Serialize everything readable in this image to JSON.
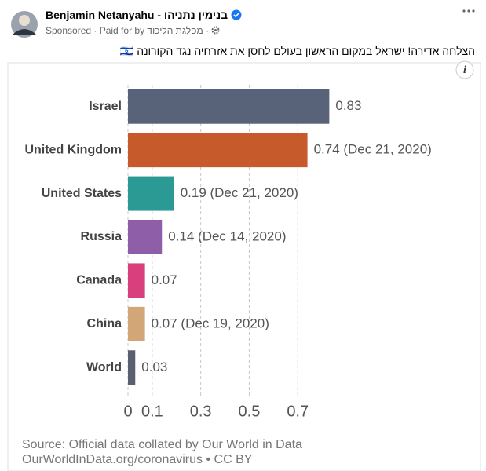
{
  "post": {
    "author": "Benjamin Netanyahu - בנימין נתניהו",
    "sponsored": "Sponsored · Paid for by",
    "payer": "מפלגת הליכוד",
    "separator": "·",
    "message": "הצלחה אדירה! ישראל במקום הראשון בעולם לחסן את אזרחיה נגד הקורונה 🇮🇱",
    "info_icon": "i"
  },
  "chart_data": {
    "type": "bar",
    "orientation": "horizontal",
    "categories": [
      "Israel",
      "United Kingdom",
      "United States",
      "Russia",
      "Canada",
      "China",
      "World"
    ],
    "values": [
      0.83,
      0.74,
      0.19,
      0.14,
      0.07,
      0.07,
      0.03
    ],
    "value_labels": [
      "0.83",
      "0.74 (Dec 21, 2020)",
      "0.19 (Dec 21, 2020)",
      "0.14 (Dec 14, 2020)",
      "0.07",
      "0.07 (Dec 19, 2020)",
      "0.03"
    ],
    "colors": [
      "#58637a",
      "#c65a2b",
      "#2b9a94",
      "#8e5ea9",
      "#d83f7c",
      "#d2a677",
      "#5b6070"
    ],
    "xlim": [
      0,
      0.9
    ],
    "xticks": [
      0,
      0.1,
      0.3,
      0.5,
      0.7
    ],
    "grid": true,
    "source": [
      "Source: Official data collated by Our World in Data",
      "OurWorldInData.org/coronavirus • CC BY"
    ]
  }
}
